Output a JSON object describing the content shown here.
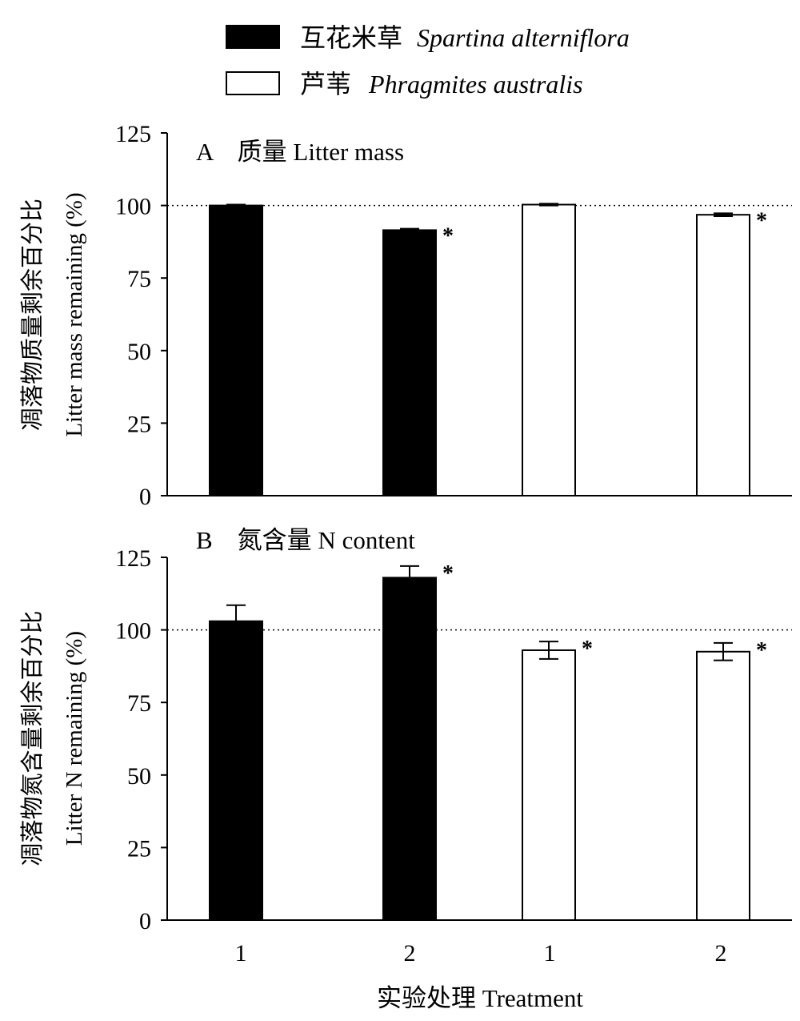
{
  "legend": {
    "entries": [
      {
        "zh": "互花米草",
        "latin": "Spartina alterniflora",
        "fill": "#000000"
      },
      {
        "zh": "芦苇",
        "latin": "Phragmites australis",
        "fill": "#ffffff"
      }
    ]
  },
  "xaxis": {
    "label": "实验处理 Treatment"
  },
  "chart_data": [
    {
      "type": "bar",
      "panel": "A",
      "title": "A　质量 Litter mass",
      "ylabel_zh": "凋落物质量剩余百分比",
      "ylabel_en": "Litter mass remaining (%)",
      "ylim": [
        0,
        125
      ],
      "yticks": [
        0,
        25,
        50,
        75,
        100,
        125
      ],
      "reference_line": 100,
      "categories": [
        "1",
        "2",
        "1",
        "2"
      ],
      "bars": [
        {
          "category": "1",
          "species": "Spartina alterniflora",
          "value": 100,
          "error": 0.3,
          "significant": false
        },
        {
          "category": "2",
          "species": "Spartina alterniflora",
          "value": 91.5,
          "error": 0.5,
          "significant": true
        },
        {
          "category": "1",
          "species": "Phragmites australis",
          "value": 100.3,
          "error": 0.3,
          "significant": false
        },
        {
          "category": "2",
          "species": "Phragmites australis",
          "value": 96.8,
          "error": 0.5,
          "significant": true
        }
      ]
    },
    {
      "type": "bar",
      "panel": "B",
      "title": "B　氮含量 N content",
      "ylabel_zh": "凋落物氮含量剩余百分比",
      "ylabel_en": "Litter N remaining (%)",
      "ylim": [
        0,
        125
      ],
      "yticks": [
        0,
        25,
        50,
        75,
        100,
        125
      ],
      "reference_line": 100,
      "categories": [
        "1",
        "2",
        "1",
        "2"
      ],
      "bars": [
        {
          "category": "1",
          "species": "Spartina alterniflora",
          "value": 103,
          "error": 5.5,
          "significant": false
        },
        {
          "category": "2",
          "species": "Spartina alterniflora",
          "value": 118,
          "error": 4,
          "significant": true
        },
        {
          "category": "1",
          "species": "Phragmites australis",
          "value": 93,
          "error": 3,
          "significant": true
        },
        {
          "category": "2",
          "species": "Phragmites australis",
          "value": 92.5,
          "error": 3,
          "significant": true
        }
      ]
    }
  ]
}
